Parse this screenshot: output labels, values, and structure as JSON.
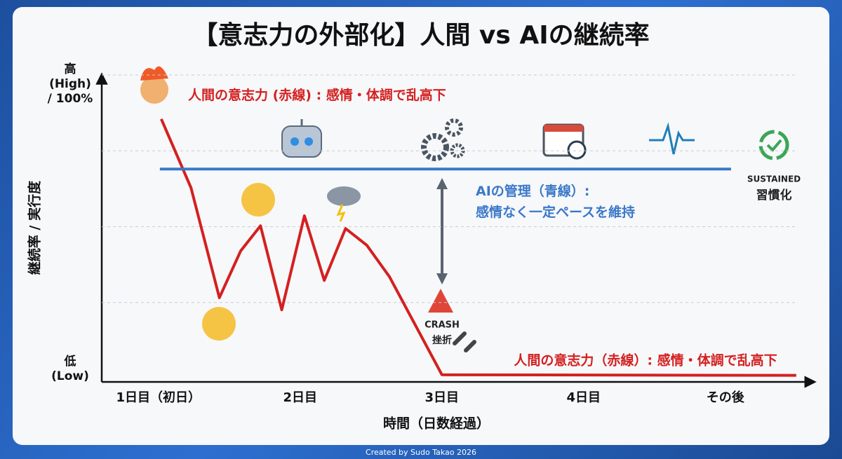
{
  "chart_data": {
    "type": "line",
    "title": "【意志力の外部化】人間 vs AIの継続率",
    "y_label": "継続率 / 実行度",
    "x_label": "時間（日数経過）",
    "xlim": [
      0.6,
      5.6
    ],
    "ylim": [
      0,
      100
    ],
    "xticks": [
      {
        "value": 1,
        "label": "1日目（初日）"
      },
      {
        "value": 2,
        "label": "2日目"
      },
      {
        "value": 3,
        "label": "3日目"
      },
      {
        "value": 4,
        "label": "4日目"
      },
      {
        "value": 5,
        "label": "その後"
      }
    ],
    "yticks": [
      {
        "value": 100,
        "label": "高\n(High)\n/ 100%"
      },
      {
        "value": 0,
        "label": "低\n(Low)"
      }
    ],
    "grid": true,
    "series": [
      {
        "name": "人間の意志力 (赤線) : 感情・体調で乱高下",
        "color": "#d42020",
        "x": [
          1.02,
          1.23,
          1.43,
          1.58,
          1.72,
          1.87,
          2.03,
          2.17,
          2.32,
          2.47,
          2.63,
          3.0,
          5.5
        ],
        "values": [
          85.5,
          62.8,
          26.6,
          42,
          50.3,
          22.6,
          53.6,
          32.3,
          49.4,
          43.9,
          33.5,
          1.2,
          1
        ]
      },
      {
        "name": "AIの管理（青線）:\n感情なく一定ペースを維持",
        "color": "#3a78c9",
        "x": [
          1.01,
          5.04
        ],
        "values": [
          69,
          69
        ]
      }
    ],
    "annotations": {
      "red_bottom": "人間の意志力（赤線）: 感情・体調で乱高下",
      "sustained": "SUSTAINED",
      "habit": "習慣化",
      "crash": "CRASH",
      "setback": "挫折"
    },
    "credit": "Created by Sudo Takao 2026"
  }
}
